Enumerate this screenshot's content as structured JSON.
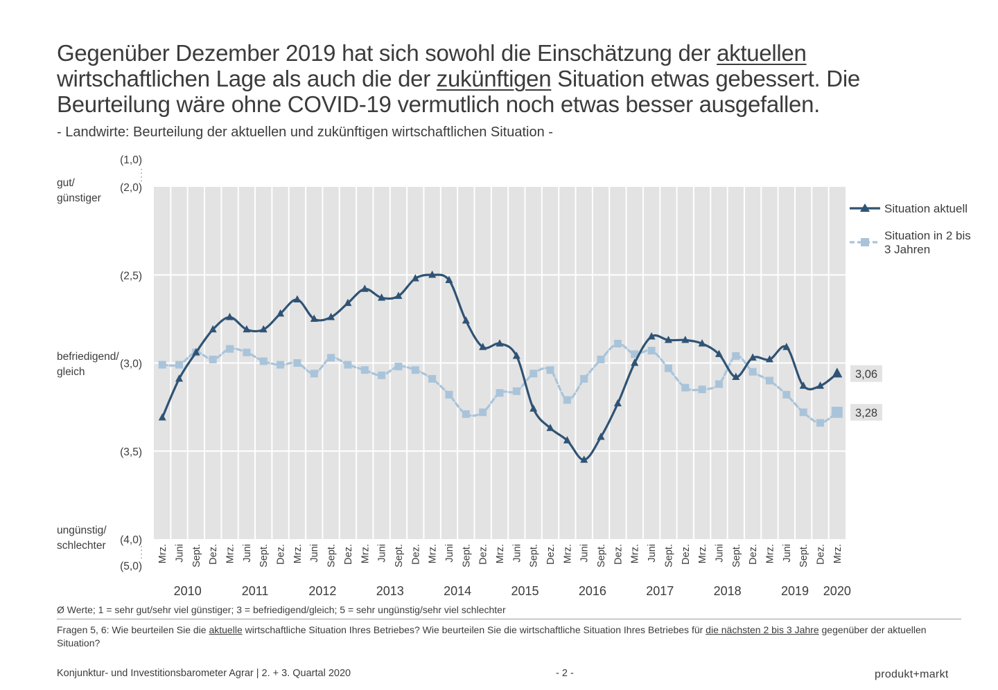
{
  "headline": {
    "p1": "Gegenüber Dezember 2019 hat sich sowohl die Einschätzung der ",
    "u1": "aktuellen",
    "p2": " wirtschaftlichen Lage als auch die der ",
    "u2": "zukünftigen",
    "p3": " Situation etwas gebessert. Die Beurteilung wäre ohne COVID-19 vermutlich noch etwas besser ausgefallen."
  },
  "subtitle": "- Landwirte: Beurteilung der aktuellen und zukünftigen wirtschaftlichen Situation -",
  "side_labels": {
    "top_1": "gut/",
    "top_2": "günstiger",
    "mid_1": "befriedigend/",
    "mid_2": "gleich",
    "bot_1": "ungünstig/",
    "bot_2": "schlechter"
  },
  "chart_data": {
    "type": "line",
    "y_axis": {
      "range": [
        2.0,
        4.0
      ],
      "ticks": [
        2.0,
        2.5,
        3.0,
        3.5,
        4.0
      ],
      "tick_labels": [
        "(2,0)",
        "(2,5)",
        "(3,0)",
        "(3,5)",
        "(4,0)"
      ],
      "outer_top_label": "(1,0)",
      "outer_bottom_label": "(5,0)",
      "inverted": true,
      "grid": true
    },
    "x_labels": [
      "Mrz.",
      "Juni",
      "Sept.",
      "Dez.",
      "Mrz.",
      "Juni",
      "Sept.",
      "Dez.",
      "Mrz.",
      "Juni",
      "Sept.",
      "Dez.",
      "Mrz.",
      "Juni",
      "Sept.",
      "Dez.",
      "Mrz.",
      "Juni",
      "Sept.",
      "Dez.",
      "Mrz.",
      "Juni",
      "Sept.",
      "Dez.",
      "Mrz.",
      "Juni",
      "Sept.",
      "Dez.",
      "Mrz.",
      "Juni",
      "Sept.",
      "Dez.",
      "Mrz.",
      "Juni",
      "Sept.",
      "Dez.",
      "Mrz.",
      "Juni",
      "Sept.",
      "Dez.",
      "Mrz."
    ],
    "years": [
      {
        "label": "2010",
        "start": 0,
        "end": 3
      },
      {
        "label": "2011",
        "start": 4,
        "end": 7
      },
      {
        "label": "2012",
        "start": 8,
        "end": 11
      },
      {
        "label": "2013",
        "start": 12,
        "end": 15
      },
      {
        "label": "2014",
        "start": 16,
        "end": 19
      },
      {
        "label": "2015",
        "start": 20,
        "end": 23
      },
      {
        "label": "2016",
        "start": 24,
        "end": 27
      },
      {
        "label": "2017",
        "start": 28,
        "end": 31
      },
      {
        "label": "2018",
        "start": 32,
        "end": 35
      },
      {
        "label": "2019",
        "start": 36,
        "end": 39
      },
      {
        "label": "2020",
        "start": 40,
        "end": 40
      }
    ],
    "series": [
      {
        "name": "Situation aktuell",
        "color": "#2f5374",
        "marker": "triangle",
        "values": [
          3.31,
          3.09,
          2.94,
          2.81,
          2.74,
          2.81,
          2.81,
          2.72,
          2.64,
          2.75,
          2.74,
          2.66,
          2.58,
          2.63,
          2.62,
          2.52,
          2.5,
          2.53,
          2.76,
          2.91,
          2.89,
          2.96,
          3.26,
          3.37,
          3.44,
          3.55,
          3.42,
          3.23,
          3.0,
          2.85,
          2.87,
          2.87,
          2.89,
          2.95,
          3.08,
          2.97,
          2.98,
          2.91,
          3.13,
          3.13,
          3.06
        ],
        "end_label": "3,06"
      },
      {
        "name": "Situation in 2 bis 3 Jahren",
        "color": "#a9c4da",
        "marker": "square",
        "values": [
          3.01,
          3.01,
          2.94,
          2.98,
          2.92,
          2.94,
          2.99,
          3.01,
          3.0,
          3.06,
          2.97,
          3.01,
          3.04,
          3.07,
          3.02,
          3.04,
          3.09,
          3.18,
          3.29,
          3.28,
          3.17,
          3.16,
          3.06,
          3.04,
          3.21,
          3.09,
          2.98,
          2.89,
          2.95,
          2.93,
          3.03,
          3.14,
          3.15,
          3.12,
          2.96,
          3.05,
          3.1,
          3.18,
          3.28,
          3.34,
          3.28
        ],
        "end_label": "3,28"
      }
    ],
    "legend": {
      "position": "right",
      "labels": {
        "s1": "Situation aktuell",
        "s2_line1": "Situation in 2 bis",
        "s2_line2": "3 Jahren"
      }
    }
  },
  "footnote": "Ø Werte; 1 = sehr gut/sehr viel günstiger; 3 = befriedigend/gleich; 5 = sehr ungünstig/sehr viel schlechter",
  "question": {
    "p1": "Fragen 5, 6: Wie beurteilen Sie die ",
    "u1": "aktuelle",
    "p2": " wirtschaftliche Situation Ihres Betriebes? Wie beurteilen Sie die wirtschaftliche Situation Ihres Betriebes für ",
    "u2": "die nächsten 2 bis 3 Jahre",
    "p3": " gegenüber der aktuellen Situation?"
  },
  "footer": {
    "left": "Konjunktur- und Investitionsbarometer Agrar | 2. + 3. Quartal 2020",
    "center": "- 2 -",
    "brand": "produkt+markt"
  }
}
